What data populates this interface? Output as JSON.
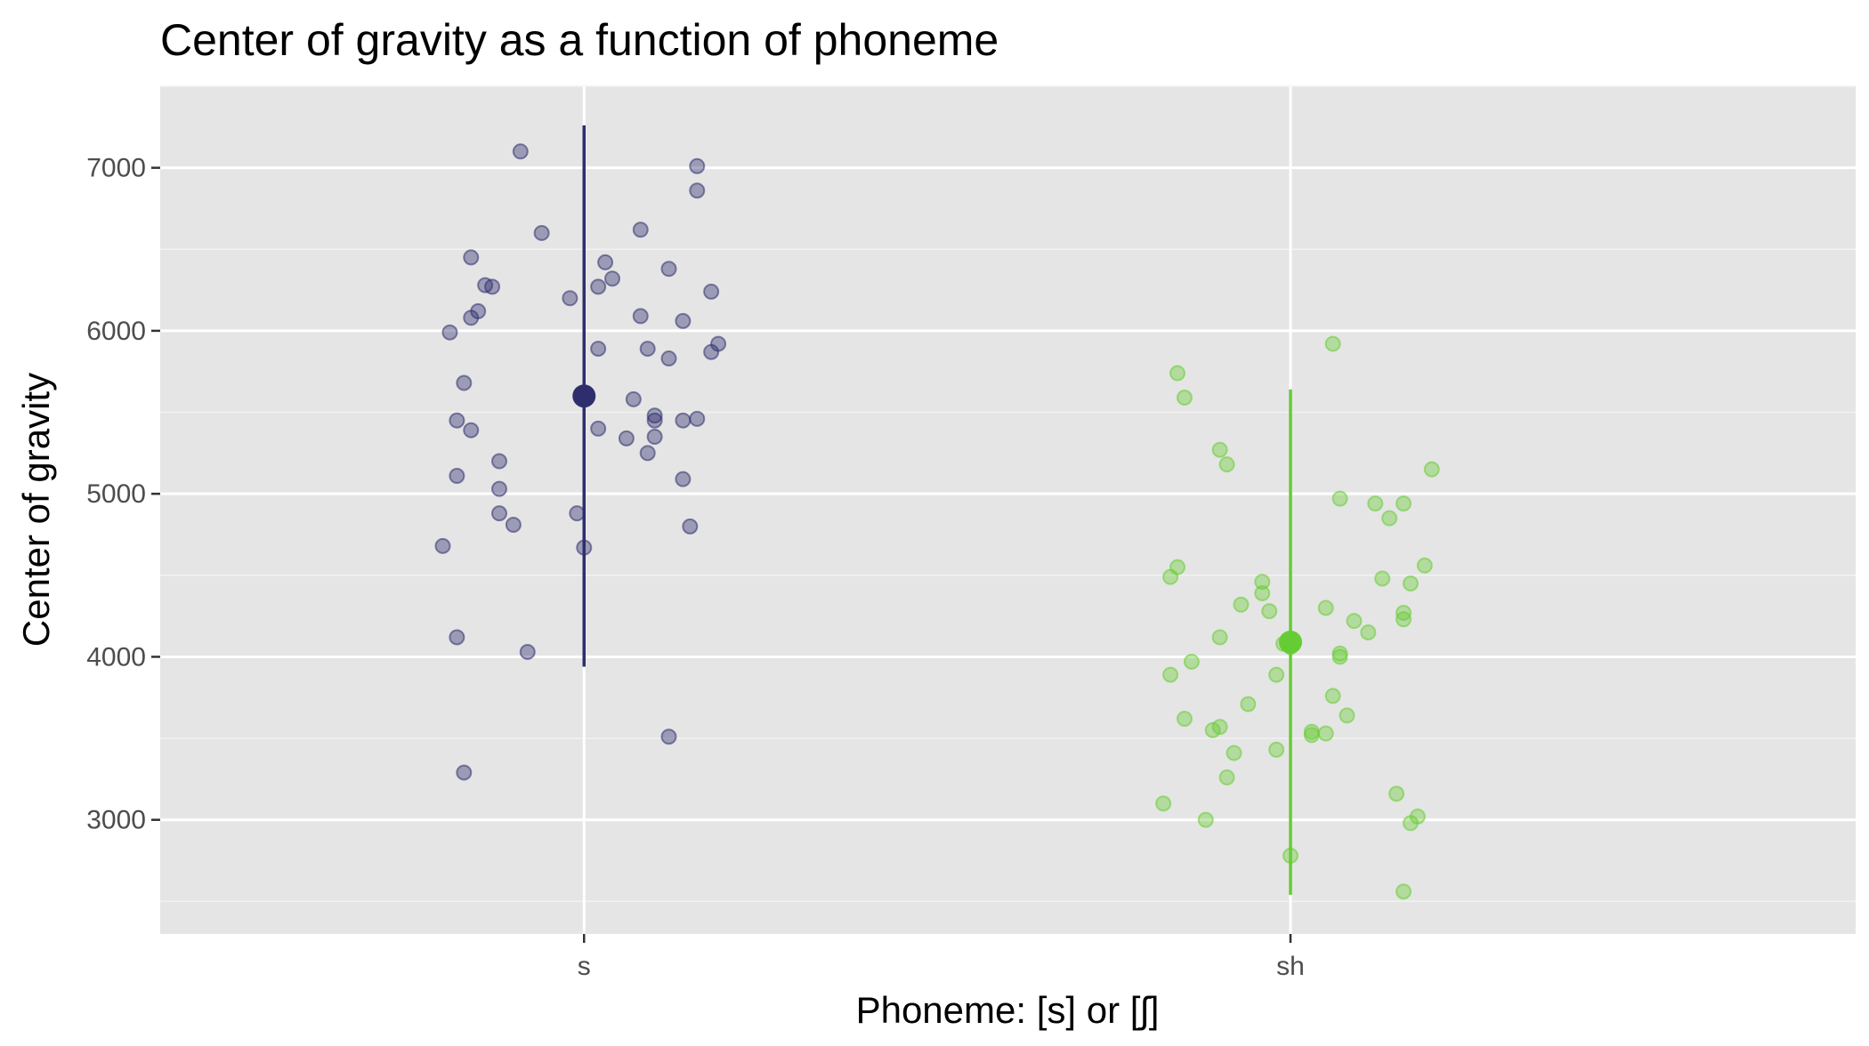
{
  "chart_data": {
    "type": "scatter",
    "title": "Center of gravity as a function of phoneme",
    "xlabel": "Phoneme: [s] or [ʃ]",
    "ylabel": "Center of gravity",
    "categories": [
      "s",
      "sh"
    ],
    "ylim": [
      2300,
      7500
    ],
    "yticks": [
      3000,
      4000,
      5000,
      6000,
      7000
    ],
    "grid": true,
    "legend": "none",
    "colors": {
      "s": "#2e2e6e",
      "sh": "#66cc33",
      "panel": "#e5e5e5",
      "grid": "#ffffff"
    },
    "summary": [
      {
        "category": "s",
        "mean": 5600,
        "low": 3940,
        "high": 7260
      },
      {
        "category": "sh",
        "mean": 4090,
        "low": 2540,
        "high": 5640
      }
    ],
    "series": [
      {
        "category": "s",
        "points": [
          [
            -0.09,
            7100
          ],
          [
            -0.06,
            6600
          ],
          [
            0.16,
            7010
          ],
          [
            0.16,
            6860
          ],
          [
            0.08,
            6620
          ],
          [
            -0.16,
            6450
          ],
          [
            0.03,
            6420
          ],
          [
            0.04,
            6320
          ],
          [
            0.12,
            6380
          ],
          [
            -0.14,
            6280
          ],
          [
            -0.13,
            6270
          ],
          [
            0.02,
            6270
          ],
          [
            0.18,
            6240
          ],
          [
            -0.02,
            6200
          ],
          [
            -0.15,
            6120
          ],
          [
            0.08,
            6090
          ],
          [
            -0.16,
            6080
          ],
          [
            0.14,
            6060
          ],
          [
            -0.19,
            5990
          ],
          [
            0.19,
            5920
          ],
          [
            0.02,
            5890
          ],
          [
            0.09,
            5890
          ],
          [
            0.18,
            5870
          ],
          [
            0.12,
            5830
          ],
          [
            -0.17,
            5680
          ],
          [
            0.07,
            5580
          ],
          [
            0.1,
            5480
          ],
          [
            -0.18,
            5450
          ],
          [
            0.1,
            5450
          ],
          [
            0.14,
            5450
          ],
          [
            0.16,
            5460
          ],
          [
            0.02,
            5400
          ],
          [
            -0.16,
            5390
          ],
          [
            0.06,
            5340
          ],
          [
            0.1,
            5350
          ],
          [
            0.09,
            5250
          ],
          [
            -0.12,
            5200
          ],
          [
            -0.18,
            5110
          ],
          [
            0.14,
            5090
          ],
          [
            -0.12,
            5030
          ],
          [
            -0.12,
            4880
          ],
          [
            -0.01,
            4880
          ],
          [
            -0.1,
            4810
          ],
          [
            0.15,
            4800
          ],
          [
            -0.2,
            4680
          ],
          [
            0.0,
            4670
          ],
          [
            -0.18,
            4120
          ],
          [
            -0.08,
            4030
          ],
          [
            0.12,
            3510
          ],
          [
            -0.17,
            3290
          ]
        ]
      },
      {
        "category": "sh",
        "points": [
          [
            0.06,
            5920
          ],
          [
            -0.16,
            5740
          ],
          [
            -0.15,
            5590
          ],
          [
            -0.1,
            5270
          ],
          [
            -0.09,
            5180
          ],
          [
            0.2,
            5150
          ],
          [
            0.07,
            4970
          ],
          [
            0.12,
            4940
          ],
          [
            0.16,
            4940
          ],
          [
            0.14,
            4850
          ],
          [
            -0.16,
            4550
          ],
          [
            -0.17,
            4490
          ],
          [
            0.19,
            4560
          ],
          [
            0.13,
            4480
          ],
          [
            0.17,
            4450
          ],
          [
            -0.04,
            4460
          ],
          [
            -0.04,
            4390
          ],
          [
            -0.07,
            4320
          ],
          [
            -0.03,
            4280
          ],
          [
            0.05,
            4300
          ],
          [
            0.16,
            4270
          ],
          [
            0.16,
            4230
          ],
          [
            0.09,
            4220
          ],
          [
            0.11,
            4150
          ],
          [
            -0.1,
            4120
          ],
          [
            -0.01,
            4080
          ],
          [
            0.0,
            4060
          ],
          [
            0.07,
            4020
          ],
          [
            0.07,
            4000
          ],
          [
            -0.14,
            3970
          ],
          [
            -0.17,
            3890
          ],
          [
            -0.02,
            3890
          ],
          [
            0.06,
            3760
          ],
          [
            -0.06,
            3710
          ],
          [
            0.08,
            3640
          ],
          [
            -0.15,
            3620
          ],
          [
            -0.1,
            3570
          ],
          [
            -0.11,
            3550
          ],
          [
            0.03,
            3540
          ],
          [
            0.03,
            3520
          ],
          [
            0.05,
            3530
          ],
          [
            -0.02,
            3430
          ],
          [
            -0.08,
            3410
          ],
          [
            -0.09,
            3260
          ],
          [
            0.15,
            3160
          ],
          [
            -0.18,
            3100
          ],
          [
            -0.12,
            3000
          ],
          [
            0.18,
            3020
          ],
          [
            0.17,
            2980
          ],
          [
            0.0,
            2780
          ],
          [
            0.16,
            2560
          ]
        ]
      }
    ]
  }
}
